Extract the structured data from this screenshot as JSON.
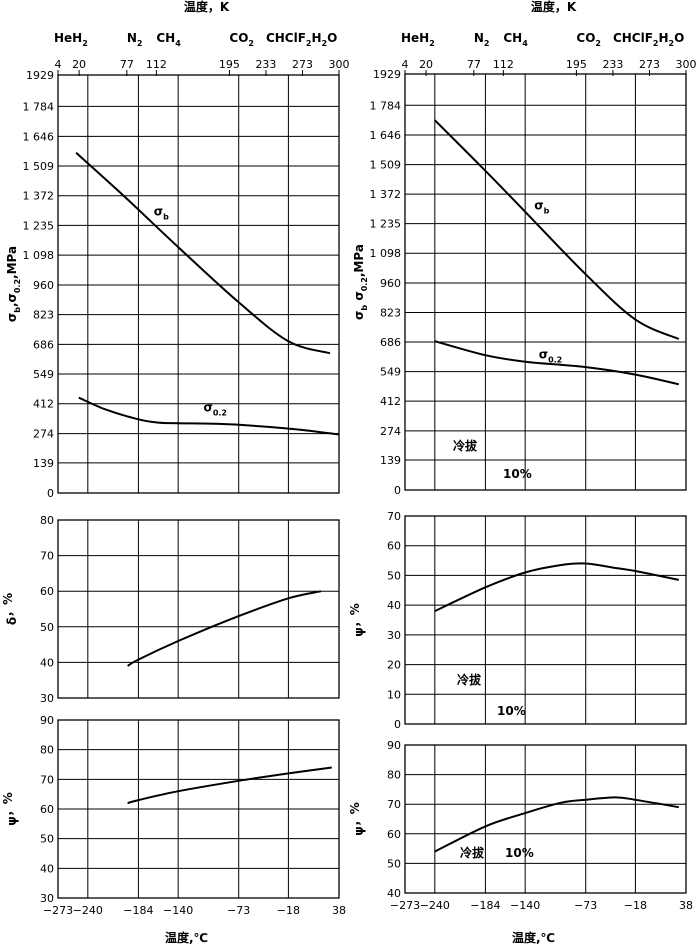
{
  "left": {
    "top_axis": {
      "title": "温度，K",
      "substances": [
        {
          "name": "HeH",
          "sub": "2",
          "k": 4
        },
        {
          "name": "N",
          "sub": "2",
          "k": 77
        },
        {
          "name": "CH",
          "sub": "4",
          "k": 112
        },
        {
          "name": "CO",
          "sub": "2",
          "k": 195
        },
        {
          "name": "CHClF",
          "sub": "2",
          "suffix": "H",
          "sub2": "2",
          "suffix2": "O",
          "k": 233
        }
      ],
      "k_ticks": [
        4,
        20,
        77,
        112,
        195,
        233,
        273,
        300
      ]
    },
    "bottom_axis": {
      "title": "温度,℃",
      "ticks": [
        -273,
        -240,
        -184,
        -140,
        -73,
        -18,
        38
      ]
    }
  },
  "right": {
    "top_axis": {
      "title": "温度，K",
      "substances": [
        {
          "name": "HeH",
          "sub": "2",
          "k": 4
        },
        {
          "name": "N",
          "sub": "2",
          "k": 77
        },
        {
          "name": "CH",
          "sub": "4",
          "k": 112
        },
        {
          "name": "CO",
          "sub": "2",
          "k": 195
        },
        {
          "name": "CHClF",
          "sub": "2",
          "suffix": "H",
          "sub2": "2",
          "suffix2": "O",
          "k": 233
        }
      ],
      "k_ticks": [
        4,
        20,
        77,
        112,
        195,
        233,
        273,
        300
      ]
    },
    "bottom_axis": {
      "title": "温度,℃",
      "ticks": [
        -273,
        -240,
        -184,
        -140,
        -73,
        -18,
        38
      ]
    }
  },
  "chart_data": [
    {
      "type": "line",
      "panel": "left-strength",
      "ylabel": {
        "main": "σ",
        "sub": "b",
        "sep": ",",
        "main2": "σ",
        "sub2": "0.2",
        "suffix": ",MPa"
      },
      "ylim": [
        0,
        1929
      ],
      "yticks": [
        0,
        139,
        274,
        412,
        549,
        686,
        823,
        960,
        1098,
        1235,
        1372,
        1509,
        1646,
        1784,
        1929
      ],
      "ytick_labels": [
        "0",
        "139",
        "274",
        "412",
        "549",
        "686",
        "823",
        "960",
        "1 098",
        "1 235",
        "1 372",
        "1 509",
        "1 646",
        "1 784",
        "1929"
      ],
      "xlim": [
        -273,
        38
      ],
      "series": [
        {
          "name": "σ",
          "name_sub": "b",
          "label_at": [
            -167,
            1280
          ],
          "x": [
            -253,
            -200,
            -140,
            -73,
            -18,
            28
          ],
          "y": [
            1570,
            1370,
            1135,
            880,
            700,
            645
          ]
        },
        {
          "name": "σ",
          "name_sub": "0.2",
          "label_at": [
            -112,
            375
          ],
          "x": [
            -250,
            -220,
            -184,
            -162,
            -140,
            -100,
            -73,
            -40,
            0,
            38
          ],
          "y": [
            440,
            385,
            340,
            325,
            322,
            320,
            315,
            305,
            290,
            270
          ]
        }
      ]
    },
    {
      "type": "line",
      "panel": "left-elongation",
      "ylabel": {
        "main": "δ",
        "suffix": "，%"
      },
      "ylim": [
        30,
        80
      ],
      "yticks": [
        30,
        40,
        50,
        60,
        70,
        80
      ],
      "xlim": [
        -273,
        38
      ],
      "series": [
        {
          "name": "",
          "x": [
            -196,
            -184,
            -140,
            -73,
            -18,
            18
          ],
          "y": [
            39,
            40.8,
            46,
            53,
            58,
            60
          ]
        }
      ]
    },
    {
      "type": "line",
      "panel": "left-reduction",
      "ylabel": {
        "main": "ψ",
        "suffix": "，%"
      },
      "ylim": [
        30,
        90
      ],
      "yticks": [
        30,
        40,
        50,
        60,
        70,
        80,
        90
      ],
      "xlim": [
        -273,
        38
      ],
      "series": [
        {
          "name": "",
          "x": [
            -196,
            -184,
            -140,
            -73,
            -18,
            30
          ],
          "y": [
            62,
            63,
            66,
            69.5,
            72,
            74
          ]
        }
      ]
    },
    {
      "type": "line",
      "panel": "right-strength",
      "ylabel": {
        "main": "σ",
        "sub": "b",
        "sep": " ",
        "main2": "σ",
        "sub2": "0.2",
        "suffix": ",MPa"
      },
      "ylim": [
        0,
        1929
      ],
      "yticks": [
        0,
        139,
        274,
        412,
        549,
        686,
        823,
        960,
        1098,
        1235,
        1372,
        1509,
        1646,
        1784,
        1929
      ],
      "ytick_labels": [
        "0",
        "139",
        "274",
        "412",
        "549",
        "686",
        "823",
        "960",
        "1 098",
        "1 235",
        "1 372",
        "1 509",
        "1 646",
        "1 784",
        "1929"
      ],
      "xlim": [
        -273,
        38
      ],
      "annotation": {
        "text": "冷拔",
        "pct": "10%"
      },
      "series": [
        {
          "name": "σ",
          "name_sub": "b",
          "label_at": [
            -130,
            1300
          ],
          "x": [
            -240,
            -184,
            -140,
            -73,
            -18,
            30
          ],
          "y": [
            1715,
            1480,
            1290,
            1000,
            790,
            700
          ]
        },
        {
          "name": "σ",
          "name_sub": "0.2",
          "label_at": [
            -125,
            610
          ],
          "x": [
            -240,
            -184,
            -140,
            -73,
            -18,
            30
          ],
          "y": [
            690,
            625,
            595,
            570,
            535,
            490
          ]
        }
      ]
    },
    {
      "type": "line",
      "panel": "right-reduction-1",
      "ylabel": {
        "main": "ψ",
        "suffix": "，%"
      },
      "ylim": [
        0,
        70
      ],
      "yticks": [
        0,
        10,
        20,
        30,
        40,
        50,
        60,
        70
      ],
      "xlim": [
        -273,
        38
      ],
      "annotation": {
        "text": "冷拔",
        "pct": "10%"
      },
      "series": [
        {
          "name": "",
          "x": [
            -240,
            -184,
            -140,
            -100,
            -73,
            -40,
            -18,
            30
          ],
          "y": [
            38,
            46,
            51,
            53.5,
            54,
            52.5,
            51.5,
            48.5
          ]
        }
      ]
    },
    {
      "type": "line",
      "panel": "right-reduction-2",
      "ylabel": {
        "main": "ψ",
        "suffix": "，%"
      },
      "ylim": [
        40,
        90
      ],
      "yticks": [
        40,
        50,
        60,
        70,
        80,
        90
      ],
      "xlim": [
        -273,
        38
      ],
      "annotation": {
        "text": "冷拔",
        "pct": "10%"
      },
      "series": [
        {
          "name": "",
          "x": [
            -240,
            -184,
            -140,
            -100,
            -73,
            -40,
            -18,
            30
          ],
          "y": [
            54,
            62.5,
            67,
            70.5,
            71.5,
            72.3,
            71.5,
            69
          ]
        }
      ]
    }
  ]
}
